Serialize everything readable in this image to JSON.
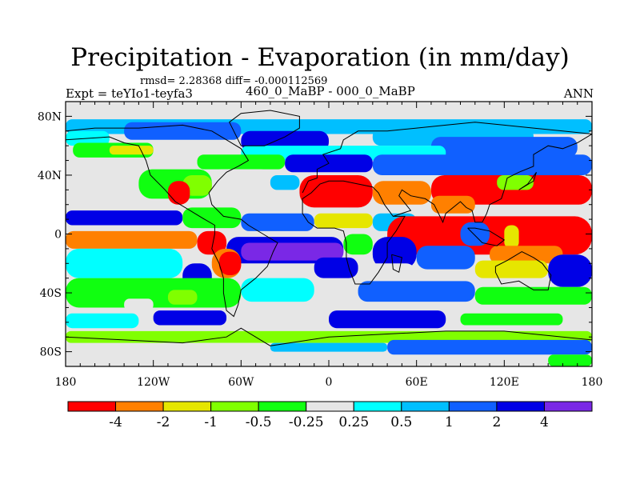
{
  "header": {
    "title": "Precipitation - Evaporation (in mm/day)",
    "stats": "rmsd= 2.28368 diff= -0.000112569",
    "expt": "Expt = teYIo1-teyfa3",
    "run": "460_0_MaBP - 000_0_MaBP",
    "season": "ANN"
  },
  "map": {
    "lon_range": [
      -180,
      180
    ],
    "lat_range": [
      -90,
      90
    ],
    "lon_tick_labels": [
      {
        "lon": -180,
        "label": "180"
      },
      {
        "lon": -120,
        "label": "120W"
      },
      {
        "lon": -60,
        "label": "60W"
      },
      {
        "lon": 0,
        "label": "0"
      },
      {
        "lon": 60,
        "label": "60E"
      },
      {
        "lon": 120,
        "label": "120E"
      },
      {
        "lon": 180,
        "label": "180"
      }
    ],
    "lat_tick_labels": [
      {
        "lat": 80,
        "label": "80N"
      },
      {
        "lat": 40,
        "label": "40N"
      },
      {
        "lat": 0,
        "label": "0"
      },
      {
        "lat": -40,
        "label": "40S"
      },
      {
        "lat": -80,
        "label": "80S"
      }
    ],
    "regions": [
      {
        "level": 5,
        "lon": [
          -180,
          180
        ],
        "lat": [
          -90,
          90
        ]
      },
      {
        "level": 5,
        "lon": [
          -180,
          -170
        ],
        "lat": [
          78,
          90
        ]
      },
      {
        "level": 7,
        "lon": [
          -180,
          180
        ],
        "lat": [
          68,
          78
        ]
      },
      {
        "level": 8,
        "lon": [
          -140,
          -60
        ],
        "lat": [
          64,
          76
        ]
      },
      {
        "level": 6,
        "lon": [
          -180,
          -150
        ],
        "lat": [
          60,
          70
        ]
      },
      {
        "level": 9,
        "lon": [
          -60,
          0
        ],
        "lat": [
          56,
          70
        ]
      },
      {
        "level": 7,
        "lon": [
          30,
          140
        ],
        "lat": [
          60,
          72
        ]
      },
      {
        "level": 8,
        "lon": [
          70,
          170
        ],
        "lat": [
          52,
          66
        ]
      },
      {
        "level": 4,
        "lon": [
          -175,
          -120
        ],
        "lat": [
          52,
          62
        ]
      },
      {
        "level": 2,
        "lon": [
          -150,
          -120
        ],
        "lat": [
          54,
          60
        ]
      },
      {
        "level": 6,
        "lon": [
          -60,
          80
        ],
        "lat": [
          50,
          60
        ]
      },
      {
        "level": 4,
        "lon": [
          -90,
          -30
        ],
        "lat": [
          44,
          54
        ]
      },
      {
        "level": 9,
        "lon": [
          -30,
          30
        ],
        "lat": [
          42,
          54
        ]
      },
      {
        "level": 8,
        "lon": [
          30,
          180
        ],
        "lat": [
          40,
          54
        ]
      },
      {
        "level": 5,
        "lon": [
          -180,
          -130
        ],
        "lat": [
          32,
          50
        ]
      },
      {
        "level": 4,
        "lon": [
          -130,
          -80
        ],
        "lat": [
          24,
          44
        ]
      },
      {
        "level": 3,
        "lon": [
          -100,
          -80
        ],
        "lat": [
          26,
          40
        ]
      },
      {
        "level": 0,
        "lon": [
          -110,
          -95
        ],
        "lat": [
          20,
          36
        ]
      },
      {
        "level": 5,
        "lon": [
          -80,
          -40
        ],
        "lat": [
          30,
          44
        ]
      },
      {
        "level": 7,
        "lon": [
          -40,
          -20
        ],
        "lat": [
          30,
          40
        ]
      },
      {
        "level": 0,
        "lon": [
          -20,
          30
        ],
        "lat": [
          18,
          40
        ]
      },
      {
        "level": 1,
        "lon": [
          30,
          70
        ],
        "lat": [
          20,
          36
        ]
      },
      {
        "level": 0,
        "lon": [
          70,
          180
        ],
        "lat": [
          20,
          40
        ]
      },
      {
        "level": 1,
        "lon": [
          70,
          100
        ],
        "lat": [
          14,
          26
        ]
      },
      {
        "level": 3,
        "lon": [
          115,
          140
        ],
        "lat": [
          30,
          40
        ]
      },
      {
        "level": 9,
        "lon": [
          -180,
          -100
        ],
        "lat": [
          6,
          16
        ]
      },
      {
        "level": 4,
        "lon": [
          -100,
          -60
        ],
        "lat": [
          4,
          18
        ]
      },
      {
        "level": 8,
        "lon": [
          -60,
          -10
        ],
        "lat": [
          2,
          14
        ]
      },
      {
        "level": 2,
        "lon": [
          -10,
          30
        ],
        "lat": [
          4,
          14
        ]
      },
      {
        "level": 7,
        "lon": [
          30,
          60
        ],
        "lat": [
          2,
          14
        ]
      },
      {
        "level": 0,
        "lon": [
          40,
          180
        ],
        "lat": [
          -14,
          12
        ]
      },
      {
        "level": 8,
        "lon": [
          90,
          110
        ],
        "lat": [
          -8,
          8
        ]
      },
      {
        "level": 2,
        "lon": [
          120,
          130
        ],
        "lat": [
          -10,
          6
        ]
      },
      {
        "level": 1,
        "lon": [
          -180,
          -90
        ],
        "lat": [
          -10,
          2
        ]
      },
      {
        "level": 0,
        "lon": [
          -90,
          -70
        ],
        "lat": [
          -14,
          2
        ]
      },
      {
        "level": 9,
        "lon": [
          -70,
          10
        ],
        "lat": [
          -20,
          -2
        ]
      },
      {
        "level": 10,
        "lon": [
          -60,
          10
        ],
        "lat": [
          -18,
          -6
        ]
      },
      {
        "level": 4,
        "lon": [
          10,
          30
        ],
        "lat": [
          -14,
          0
        ]
      },
      {
        "level": 9,
        "lon": [
          30,
          60
        ],
        "lat": [
          -24,
          -2
        ]
      },
      {
        "level": 6,
        "lon": [
          -180,
          -100
        ],
        "lat": [
          -30,
          -10
        ]
      },
      {
        "level": 1,
        "lon": [
          -80,
          -60
        ],
        "lat": [
          -30,
          -10
        ]
      },
      {
        "level": 9,
        "lon": [
          -100,
          -80
        ],
        "lat": [
          -38,
          -20
        ]
      },
      {
        "level": 0,
        "lon": [
          -75,
          -60
        ],
        "lat": [
          -28,
          -12
        ]
      },
      {
        "level": 9,
        "lon": [
          -10,
          20
        ],
        "lat": [
          -30,
          -16
        ]
      },
      {
        "level": 5,
        "lon": [
          20,
          60
        ],
        "lat": [
          -36,
          -20
        ]
      },
      {
        "level": 8,
        "lon": [
          60,
          100
        ],
        "lat": [
          -24,
          -8
        ]
      },
      {
        "level": 1,
        "lon": [
          110,
          160
        ],
        "lat": [
          -20,
          -8
        ]
      },
      {
        "level": 2,
        "lon": [
          100,
          150
        ],
        "lat": [
          -30,
          -18
        ]
      },
      {
        "level": 9,
        "lon": [
          150,
          180
        ],
        "lat": [
          -36,
          -14
        ]
      },
      {
        "level": 4,
        "lon": [
          -180,
          -60
        ],
        "lat": [
          -50,
          -30
        ]
      },
      {
        "level": 3,
        "lon": [
          -110,
          -90
        ],
        "lat": [
          -48,
          -38
        ]
      },
      {
        "level": 6,
        "lon": [
          -60,
          -10
        ],
        "lat": [
          -46,
          -30
        ]
      },
      {
        "level": 8,
        "lon": [
          20,
          100
        ],
        "lat": [
          -46,
          -32
        ]
      },
      {
        "level": 4,
        "lon": [
          100,
          180
        ],
        "lat": [
          -48,
          -36
        ]
      },
      {
        "level": 5,
        "lon": [
          -140,
          -120
        ],
        "lat": [
          -52,
          -44
        ]
      },
      {
        "level": 5,
        "lon": [
          -180,
          180
        ],
        "lat": [
          -66,
          -50
        ]
      },
      {
        "level": 9,
        "lon": [
          -120,
          -70
        ],
        "lat": [
          -62,
          -52
        ]
      },
      {
        "level": 9,
        "lon": [
          0,
          80
        ],
        "lat": [
          -64,
          -52
        ]
      },
      {
        "level": 6,
        "lon": [
          -180,
          -130
        ],
        "lat": [
          -64,
          -54
        ]
      },
      {
        "level": 4,
        "lon": [
          90,
          160
        ],
        "lat": [
          -62,
          -54
        ]
      },
      {
        "level": 3,
        "lon": [
          -180,
          180
        ],
        "lat": [
          -74,
          -66
        ]
      },
      {
        "level": 5,
        "lon": [
          -120,
          -40
        ],
        "lat": [
          -90,
          -74
        ]
      },
      {
        "level": 8,
        "lon": [
          40,
          180
        ],
        "lat": [
          -82,
          -72
        ]
      },
      {
        "level": 4,
        "lon": [
          150,
          180
        ],
        "lat": [
          -90,
          -82
        ]
      },
      {
        "level": 7,
        "lon": [
          -40,
          40
        ],
        "lat": [
          -80,
          -74
        ]
      }
    ],
    "coastlines": [
      [
        [
          -180,
          64
        ],
        [
          -150,
          66
        ],
        [
          -140,
          62
        ],
        [
          -130,
          60
        ],
        [
          -125,
          50
        ],
        [
          -122,
          40
        ],
        [
          -112,
          30
        ],
        [
          -105,
          22
        ],
        [
          -95,
          16
        ],
        [
          -85,
          10
        ],
        [
          -78,
          6
        ],
        [
          -78,
          0
        ],
        [
          -80,
          -10
        ],
        [
          -75,
          -20
        ],
        [
          -72,
          -30
        ],
        [
          -72,
          -40
        ],
        [
          -70,
          -52
        ],
        [
          -65,
          -56
        ],
        [
          -62,
          -48
        ],
        [
          -60,
          -38
        ],
        [
          -50,
          -30
        ],
        [
          -42,
          -22
        ],
        [
          -38,
          -12
        ],
        [
          -35,
          -6
        ],
        [
          -45,
          0
        ],
        [
          -55,
          6
        ],
        [
          -60,
          10
        ],
        [
          -72,
          12
        ],
        [
          -80,
          20
        ],
        [
          -82,
          28
        ],
        [
          -76,
          36
        ],
        [
          -70,
          42
        ],
        [
          -62,
          46
        ],
        [
          -55,
          50
        ],
        [
          -60,
          58
        ],
        [
          -70,
          64
        ],
        [
          -80,
          70
        ],
        [
          -100,
          74
        ],
        [
          -130,
          72
        ],
        [
          -160,
          72
        ],
        [
          -180,
          70
        ]
      ],
      [
        [
          -60,
          60
        ],
        [
          -44,
          60
        ],
        [
          -30,
          66
        ],
        [
          -20,
          72
        ],
        [
          -20,
          80
        ],
        [
          -40,
          84
        ],
        [
          -60,
          82
        ],
        [
          -68,
          76
        ],
        [
          -60,
          60
        ]
      ],
      [
        [
          -18,
          28
        ],
        [
          -14,
          36
        ],
        [
          -8,
          38
        ],
        [
          -8,
          44
        ],
        [
          0,
          48
        ],
        [
          -4,
          54
        ],
        [
          8,
          58
        ],
        [
          10,
          64
        ],
        [
          20,
          70
        ],
        [
          40,
          70
        ],
        [
          60,
          72
        ],
        [
          80,
          74
        ],
        [
          100,
          76
        ],
        [
          120,
          74
        ],
        [
          140,
          72
        ],
        [
          160,
          70
        ],
        [
          180,
          68
        ],
        [
          170,
          62
        ],
        [
          160,
          58
        ],
        [
          150,
          60
        ],
        [
          140,
          54
        ],
        [
          140,
          46
        ],
        [
          130,
          42
        ],
        [
          122,
          38
        ],
        [
          120,
          30
        ],
        [
          118,
          24
        ],
        [
          110,
          20
        ],
        [
          108,
          14
        ],
        [
          105,
          8
        ],
        [
          100,
          8
        ],
        [
          98,
          16
        ],
        [
          94,
          18
        ],
        [
          90,
          22
        ],
        [
          80,
          14
        ],
        [
          78,
          8
        ],
        [
          72,
          20
        ],
        [
          66,
          24
        ],
        [
          56,
          26
        ],
        [
          50,
          30
        ],
        [
          48,
          26
        ],
        [
          56,
          16
        ],
        [
          44,
          12
        ],
        [
          38,
          20
        ],
        [
          34,
          28
        ],
        [
          30,
          32
        ],
        [
          20,
          34
        ],
        [
          10,
          36
        ],
        [
          0,
          36
        ],
        [
          -6,
          34
        ],
        [
          -12,
          28
        ],
        [
          -18,
          24
        ],
        [
          -18,
          14
        ],
        [
          -14,
          8
        ],
        [
          -8,
          4
        ],
        [
          4,
          4
        ],
        [
          10,
          2
        ],
        [
          12,
          -6
        ],
        [
          12,
          -16
        ],
        [
          14,
          -24
        ],
        [
          18,
          -34
        ],
        [
          28,
          -34
        ],
        [
          34,
          -26
        ],
        [
          40,
          -16
        ],
        [
          40,
          -6
        ],
        [
          46,
          2
        ],
        [
          52,
          12
        ],
        [
          44,
          12
        ]
      ],
      [
        [
          43,
          -14
        ],
        [
          50,
          -16
        ],
        [
          48,
          -26
        ],
        [
          44,
          -24
        ],
        [
          43,
          -14
        ]
      ],
      [
        [
          114,
          -22
        ],
        [
          122,
          -18
        ],
        [
          132,
          -12
        ],
        [
          140,
          -16
        ],
        [
          146,
          -20
        ],
        [
          152,
          -28
        ],
        [
          150,
          -38
        ],
        [
          140,
          -38
        ],
        [
          130,
          -32
        ],
        [
          118,
          -34
        ],
        [
          114,
          -26
        ],
        [
          114,
          -22
        ]
      ],
      [
        [
          95,
          4
        ],
        [
          105,
          -6
        ],
        [
          115,
          -8
        ],
        [
          120,
          -4
        ],
        [
          110,
          2
        ],
        [
          100,
          4
        ],
        [
          95,
          4
        ]
      ],
      [
        [
          130,
          30
        ],
        [
          140,
          36
        ],
        [
          142,
          42
        ],
        [
          136,
          34
        ],
        [
          130,
          30
        ]
      ],
      [
        [
          -180,
          -70
        ],
        [
          -140,
          -72
        ],
        [
          -100,
          -74
        ],
        [
          -70,
          -70
        ],
        [
          -60,
          -64
        ],
        [
          -40,
          -76
        ],
        [
          0,
          -70
        ],
        [
          40,
          -68
        ],
        [
          80,
          -66
        ],
        [
          120,
          -66
        ],
        [
          160,
          -70
        ],
        [
          180,
          -72
        ]
      ]
    ]
  },
  "colorbar": {
    "colors": [
      "#ff0000",
      "#ff8000",
      "#e6e600",
      "#80ff00",
      "#10ff10",
      "#e6e6e6",
      "#00ffff",
      "#00bfff",
      "#1060ff",
      "#0000e6",
      "#7a28e6"
    ],
    "labels": [
      "-4",
      "-2",
      "-1",
      "-0.5",
      "-0.25",
      "0.25",
      "0.5",
      "1",
      "2",
      "4"
    ]
  }
}
